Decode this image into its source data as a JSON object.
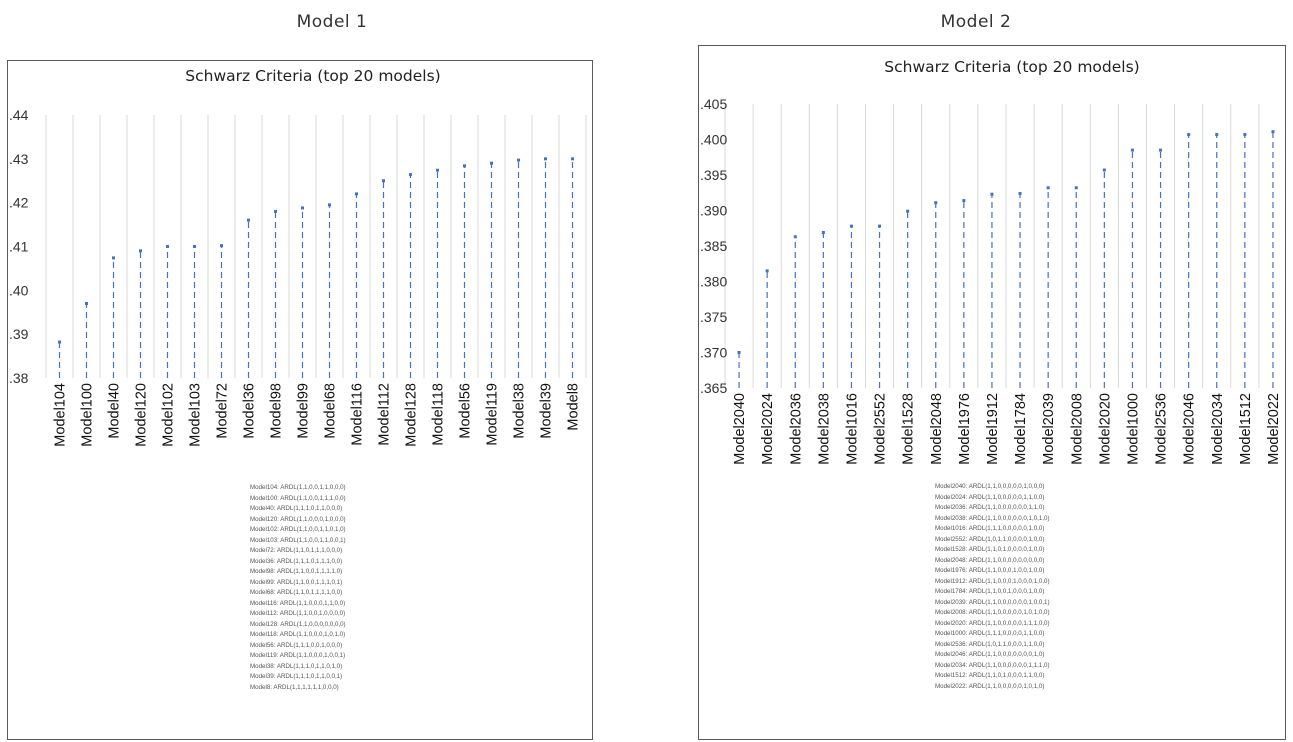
{
  "headings": [
    "Model 1",
    "Model 2"
  ],
  "chart_data": [
    {
      "type": "scatter",
      "title": "Schwarz Criteria (top 20 models)",
      "categories": [
        "Model104",
        "Model100",
        "Model40",
        "Model120",
        "Model102",
        "Model103",
        "Model72",
        "Model36",
        "Model98",
        "Model99",
        "Model68",
        "Model116",
        "Model112",
        "Model128",
        "Model118",
        "Model56",
        "Model119",
        "Model38",
        "Model39",
        "Model8"
      ],
      "values": [
        0.3882,
        0.397,
        0.4074,
        0.409,
        0.41,
        0.41,
        0.4102,
        0.416,
        0.418,
        0.4188,
        0.4195,
        0.422,
        0.425,
        0.4264,
        0.4274,
        0.4284,
        0.429,
        0.4297,
        0.43,
        0.43
      ],
      "yticks": [
        ".38",
        ".39",
        ".40",
        ".41",
        ".42",
        ".43",
        ".44"
      ],
      "ylim": [
        0.38,
        0.44
      ],
      "drop_lines": true,
      "grid": "vertical",
      "color": "#4472C4",
      "legend": [
        "Model104: ARDL(1,1,0,0,1,1,0,0,0)",
        "Model100: ARDL(1,1,0,0,1,1,1,0,0)",
        "Model40: ARDL(1,1,1,0,1,1,0,0,0)",
        "Model120: ARDL(1,1,0,0,0,1,0,0,0)",
        "Model102: ARDL(1,1,0,0,1,1,0,1,0)",
        "Model103: ARDL(1,1,0,0,1,1,0,0,1)",
        "Model72: ARDL(1,1,0,1,1,1,0,0,0)",
        "Model36: ARDL(1,1,1,0,1,1,1,0,0)",
        "Model98: ARDL(1,1,0,0,1,1,1,1,0)",
        "Model99: ARDL(1,1,0,0,1,1,1,0,1)",
        "Model68: ARDL(1,1,0,1,1,1,1,0,0)",
        "Model116: ARDL(1,1,0,0,0,1,1,0,0)",
        "Model112: ARDL(1,1,0,0,1,0,0,0,0)",
        "Model128: ARDL(1,1,0,0,0,0,0,0,0)",
        "Model118: ARDL(1,1,0,0,0,1,0,1,0)",
        "Model56: ARDL(1,1,1,0,0,1,0,0,0)",
        "Model119: ARDL(1,1,0,0,0,1,0,0,1)",
        "Model38: ARDL(1,1,1,0,1,1,0,1,0)",
        "Model39: ARDL(1,1,1,0,1,1,0,0,1)",
        "Model8: ARDL(1,1,1,1,1,1,0,0,0)"
      ]
    },
    {
      "type": "scatter",
      "title": "Schwarz Criteria (top 20 models)",
      "categories": [
        "Model2040",
        "Model2024",
        "Model2036",
        "Model2038",
        "Model1016",
        "Model2552",
        "Model1528",
        "Model2048",
        "Model1976",
        "Model1912",
        "Model1784",
        "Model2039",
        "Model2008",
        "Model2020",
        "Model1000",
        "Model2536",
        "Model2046",
        "Model2034",
        "Model1512",
        "Model2022"
      ],
      "values": [
        0.37,
        0.3815,
        0.3863,
        0.3869,
        0.3878,
        0.3878,
        0.3899,
        0.3911,
        0.3914,
        0.3923,
        0.3924,
        0.3932,
        0.3932,
        0.3957,
        0.3985,
        0.3985,
        0.4007,
        0.4007,
        0.4007,
        0.4011
      ],
      "yticks": [
        ".365",
        ".370",
        ".375",
        ".380",
        ".385",
        ".390",
        ".395",
        ".400",
        ".405"
      ],
      "ylim": [
        0.365,
        0.405
      ],
      "drop_lines": true,
      "grid": "vertical",
      "color": "#4472C4",
      "legend": [
        "Model2040: ARDL(1,1,0,0,0,0,0,1,0,0,0)",
        "Model2024: ARDL(1,1,0,0,0,0,0,1,1,0,0)",
        "Model2036: ARDL(1,1,0,0,0,0,0,0,1,1,0)",
        "Model2038: ARDL(1,1,0,0,0,0,0,0,1,0,1,0)",
        "Model1016: ARDL(1,1,1,0,0,0,0,0,1,0,0)",
        "Model2552: ARDL(1,0,1,1,0,0,0,0,1,0,0)",
        "Model1528: ARDL(1,1,0,1,0,0,0,0,1,0,0)",
        "Model2048: ARDL(1,1,0,0,0,0,0,0,0,0,0)",
        "Model1976: ARDL(1,1,0,0,0,1,0,0,1,0,0)",
        "Model1912: ARDL(1,1,0,0,0,1,0,0,0,1,0,0)",
        "Model1784: ARDL(1,1,0,0,1,0,0,0,1,0,0)",
        "Model2039: ARDL(1,1,0,0,0,0,0,0,1,0,0,1)",
        "Model2008: ARDL(1,1,0,0,0,0,0,1,0,1,0,0)",
        "Model2020: ARDL(1,1,0,0,0,0,0,1,1,1,0,0)",
        "Model1000: ARDL(1,1,1,0,0,0,0,1,1,0,0)",
        "Model2536: ARDL(1,0,1,1,0,0,0,1,1,0,0)",
        "Model2046: ARDL(1,1,0,0,0,0,0,0,0,1,0)",
        "Model2034: ARDL(1,1,0,0,0,0,0,0,1,1,1,0)",
        "Model1512: ARDL(1,1,0,1,0,0,0,1,1,0,0)",
        "Model2022: ARDL(1,1,0,0,0,0,0,1,0,1,0)"
      ]
    }
  ]
}
